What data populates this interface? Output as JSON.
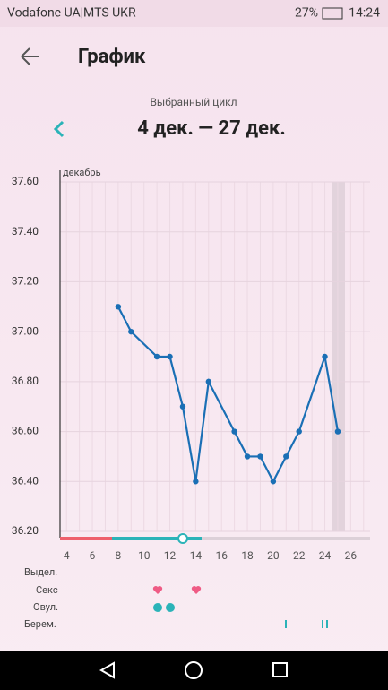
{
  "status_bar": {
    "carrier": "Vodafone UA|MTS UKR",
    "battery": "27%",
    "time": "14:24"
  },
  "header": {
    "title": "График"
  },
  "cycle": {
    "caption": "Выбранный цикл",
    "range": "4 дек. — 27 дек."
  },
  "chart_data": {
    "type": "line",
    "x_label": "декабрь",
    "x": [
      8,
      9,
      11,
      12,
      13,
      14,
      15,
      17,
      18,
      19,
      20,
      21,
      22,
      24,
      25
    ],
    "series": [
      {
        "color": "#1a6fb5",
        "values": [
          37.1,
          37.0,
          36.9,
          36.9,
          36.7,
          36.4,
          36.8,
          36.6,
          36.5,
          36.5,
          36.4,
          36.5,
          36.6,
          36.9,
          36.6
        ]
      }
    ],
    "xlim": [
      3.5,
      27.5
    ],
    "xticks": [
      4,
      6,
      8,
      10,
      12,
      14,
      16,
      18,
      20,
      22,
      24,
      26
    ],
    "ylim": [
      36.2,
      37.6
    ],
    "yticks": [
      {
        "value": 36.2,
        "label": "36.20"
      },
      {
        "value": 36.4,
        "label": "36.40"
      },
      {
        "value": 36.6,
        "label": "36.60"
      },
      {
        "value": 36.8,
        "label": "36.80"
      },
      {
        "value": 37.0,
        "label": "37.00"
      },
      {
        "value": 37.2,
        "label": "37.20"
      },
      {
        "value": 37.4,
        "label": "37.40"
      },
      {
        "value": 37.6,
        "label": "37.60"
      }
    ],
    "grid": true
  },
  "rows": [
    "Выдел.",
    "Секс",
    "Овул.",
    "Берем."
  ]
}
